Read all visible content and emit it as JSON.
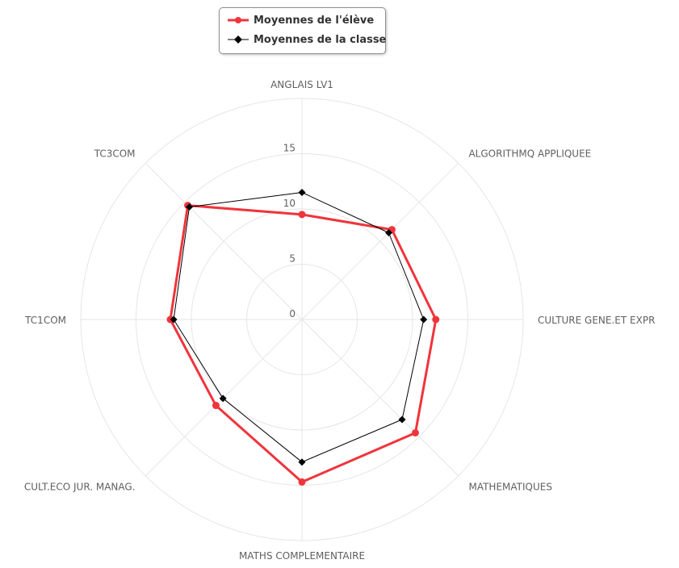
{
  "chart_data": {
    "type": "radar",
    "categories": [
      "ANGLAIS LV1",
      "ALGORITHMQ APPLIQUEE",
      "CULTURE GENE.ET EXPR",
      "MATHEMATIQUES",
      "MATHS COMPLEMENTAIRE",
      "CULT.ECO JUR. MANAG.",
      "TC1COM",
      "TC3COM"
    ],
    "series": [
      {
        "name": "Moyennes de l'élève",
        "color": "#f0343c",
        "values": [
          9.5,
          11.5,
          12.1,
          14.5,
          14.7,
          11.0,
          11.9,
          14.6
        ]
      },
      {
        "name": "Moyennes de la classe",
        "color": "#000000",
        "values": [
          11.5,
          11.1,
          11.0,
          12.8,
          12.9,
          10.1,
          11.6,
          14.4
        ]
      }
    ],
    "radial_ticks": [
      "0",
      "5",
      "10",
      "15"
    ],
    "rlim": [
      0,
      20
    ],
    "grid": true,
    "legend": "top-center"
  }
}
